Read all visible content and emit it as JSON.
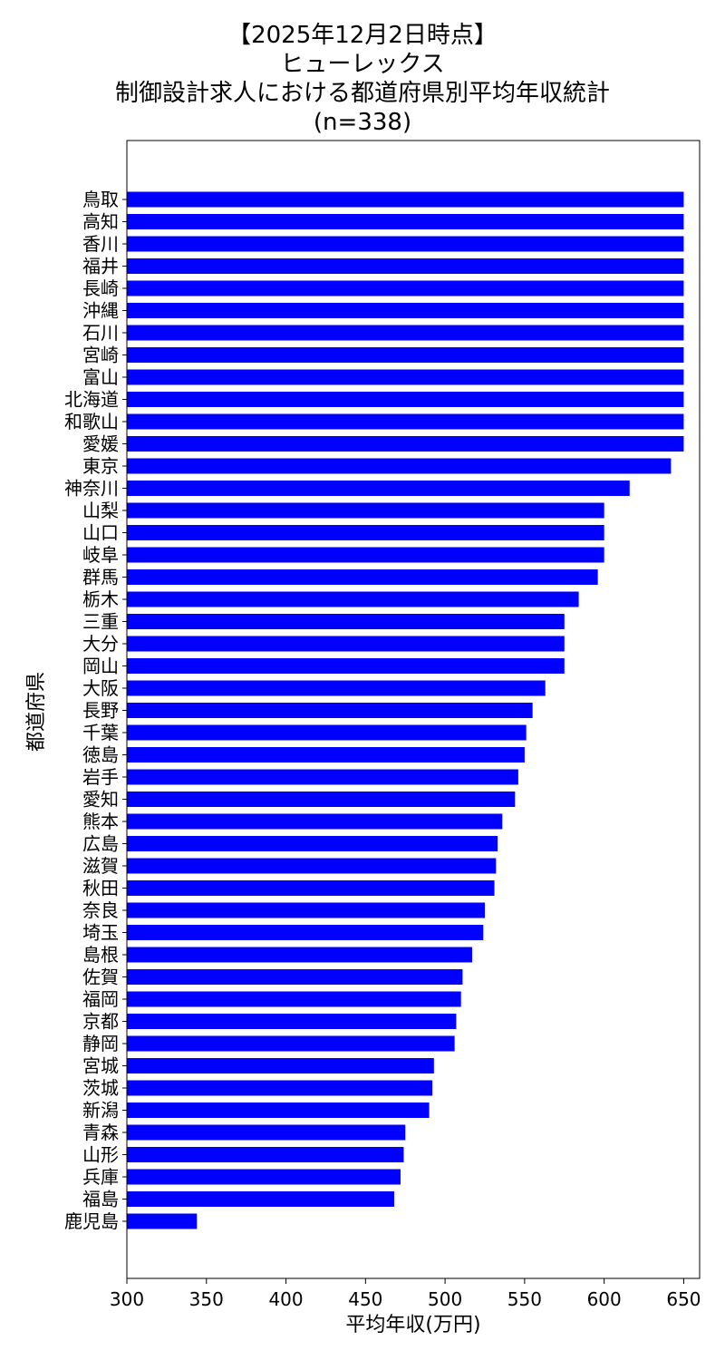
{
  "chart_data": {
    "type": "bar",
    "orientation": "horizontal",
    "title_lines": [
      "【2025年12月2日時点】",
      "ヒューレックス",
      "制御設計求人における都道府県別平均年収統計",
      "(n=338)"
    ],
    "xlabel": "平均年収(万円)",
    "ylabel": "都道府県",
    "xlim": [
      300,
      660
    ],
    "xticks": [
      300,
      350,
      400,
      450,
      500,
      550,
      600,
      650
    ],
    "grid": false,
    "legend": "none",
    "bar_color": "#0000ff",
    "categories": [
      "鳥取",
      "高知",
      "香川",
      "福井",
      "長崎",
      "沖縄",
      "石川",
      "宮崎",
      "富山",
      "北海道",
      "和歌山",
      "愛媛",
      "東京",
      "神奈川",
      "山梨",
      "山口",
      "岐阜",
      "群馬",
      "栃木",
      "三重",
      "大分",
      "岡山",
      "大阪",
      "長野",
      "千葉",
      "徳島",
      "岩手",
      "愛知",
      "熊本",
      "広島",
      "滋賀",
      "秋田",
      "奈良",
      "埼玉",
      "島根",
      "佐賀",
      "福岡",
      "京都",
      "静岡",
      "宮城",
      "茨城",
      "新潟",
      "青森",
      "山形",
      "兵庫",
      "福島",
      "鹿児島"
    ],
    "values": [
      650,
      650,
      650,
      650,
      650,
      650,
      650,
      650,
      650,
      650,
      650,
      650,
      642,
      616,
      600,
      600,
      600,
      596,
      584,
      575,
      575,
      575,
      563,
      555,
      551,
      550,
      546,
      544,
      536,
      533,
      532,
      531,
      525,
      524,
      517,
      511,
      510,
      507,
      506,
      493,
      492,
      490,
      475,
      474,
      472,
      468,
      344
    ]
  }
}
